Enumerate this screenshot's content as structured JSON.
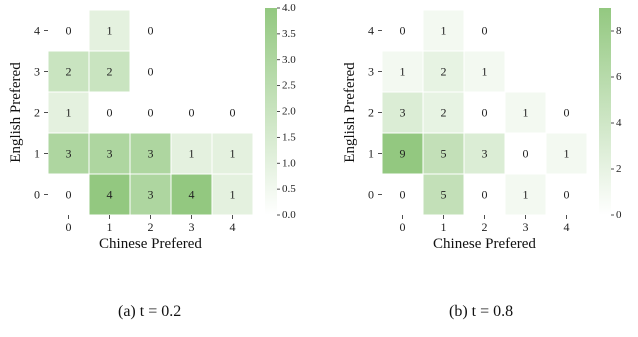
{
  "figure": {
    "captions": [
      "(a) t = 0.2",
      "(b) t = 0.8"
    ]
  },
  "chart_data": [
    {
      "type": "heatmap",
      "title": "",
      "xlabel": "Chinese Prefered",
      "ylabel": "English Prefered",
      "x": [
        0,
        1,
        2,
        3,
        4
      ],
      "y": [
        0,
        1,
        2,
        3,
        4
      ],
      "x_tick_labels": [
        "0",
        "1",
        "2",
        "3",
        "4"
      ],
      "y_tick_labels": [
        "0",
        "1",
        "2",
        "3",
        "4"
      ],
      "cells": [
        {
          "x": 0,
          "y": 4,
          "value": 0
        },
        {
          "x": 1,
          "y": 4,
          "value": 1
        },
        {
          "x": 2,
          "y": 4,
          "value": 0
        },
        {
          "x": 0,
          "y": 3,
          "value": 2
        },
        {
          "x": 1,
          "y": 3,
          "value": 2
        },
        {
          "x": 2,
          "y": 3,
          "value": 0
        },
        {
          "x": 0,
          "y": 2,
          "value": 1
        },
        {
          "x": 1,
          "y": 2,
          "value": 0
        },
        {
          "x": 2,
          "y": 2,
          "value": 0
        },
        {
          "x": 3,
          "y": 2,
          "value": 0
        },
        {
          "x": 4,
          "y": 2,
          "value": 0
        },
        {
          "x": 0,
          "y": 1,
          "value": 3
        },
        {
          "x": 1,
          "y": 1,
          "value": 3
        },
        {
          "x": 2,
          "y": 1,
          "value": 3
        },
        {
          "x": 3,
          "y": 1,
          "value": 1
        },
        {
          "x": 4,
          "y": 1,
          "value": 1
        },
        {
          "x": 0,
          "y": 0,
          "value": 0
        },
        {
          "x": 1,
          "y": 0,
          "value": 4
        },
        {
          "x": 2,
          "y": 0,
          "value": 3
        },
        {
          "x": 3,
          "y": 0,
          "value": 4
        },
        {
          "x": 4,
          "y": 0,
          "value": 1
        }
      ],
      "colorbar": {
        "range": [
          0,
          4
        ],
        "ticks": [
          "0.0",
          "0.5",
          "1.0",
          "1.5",
          "2.0",
          "2.5",
          "3.0",
          "3.5",
          "4.0"
        ],
        "color_low": "#ffffff",
        "color_high": "#93c880"
      },
      "grid": false,
      "legend": "colorbar-right"
    },
    {
      "type": "heatmap",
      "title": "",
      "xlabel": "Chinese Prefered",
      "ylabel": "English Prefered",
      "x": [
        0,
        1,
        2,
        3,
        4
      ],
      "y": [
        0,
        1,
        2,
        3,
        4
      ],
      "x_tick_labels": [
        "0",
        "1",
        "2",
        "3",
        "4"
      ],
      "y_tick_labels": [
        "0",
        "1",
        "2",
        "3",
        "4"
      ],
      "cells": [
        {
          "x": 0,
          "y": 4,
          "value": 0
        },
        {
          "x": 1,
          "y": 4,
          "value": 1
        },
        {
          "x": 2,
          "y": 4,
          "value": 0
        },
        {
          "x": 0,
          "y": 3,
          "value": 1
        },
        {
          "x": 1,
          "y": 3,
          "value": 2
        },
        {
          "x": 2,
          "y": 3,
          "value": 1
        },
        {
          "x": 0,
          "y": 2,
          "value": 3
        },
        {
          "x": 1,
          "y": 2,
          "value": 2
        },
        {
          "x": 2,
          "y": 2,
          "value": 0
        },
        {
          "x": 3,
          "y": 2,
          "value": 1
        },
        {
          "x": 4,
          "y": 2,
          "value": 0
        },
        {
          "x": 0,
          "y": 1,
          "value": 9
        },
        {
          "x": 1,
          "y": 1,
          "value": 5
        },
        {
          "x": 2,
          "y": 1,
          "value": 3
        },
        {
          "x": 3,
          "y": 1,
          "value": 0
        },
        {
          "x": 4,
          "y": 1,
          "value": 1
        },
        {
          "x": 0,
          "y": 0,
          "value": 0
        },
        {
          "x": 1,
          "y": 0,
          "value": 5
        },
        {
          "x": 2,
          "y": 0,
          "value": 0
        },
        {
          "x": 3,
          "y": 0,
          "value": 1
        },
        {
          "x": 4,
          "y": 0,
          "value": 0
        }
      ],
      "colorbar": {
        "range": [
          0,
          9
        ],
        "ticks": [
          "0",
          "2",
          "4",
          "6",
          "8"
        ],
        "tick_values": [
          0,
          2,
          4,
          6,
          8
        ],
        "color_low": "#ffffff",
        "color_high": "#93c880"
      },
      "grid": false,
      "legend": "colorbar-right"
    }
  ]
}
